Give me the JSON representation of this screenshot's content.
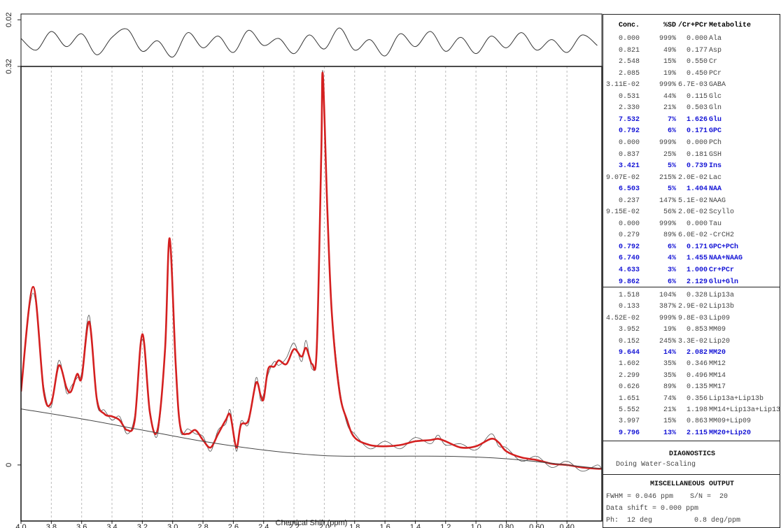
{
  "chart_data": [
    {
      "type": "line",
      "color": "#333333",
      "x": [
        4.0,
        3.9,
        3.8,
        3.7,
        3.6,
        3.5,
        3.4,
        3.3,
        3.2,
        3.1,
        3.0,
        2.9,
        2.8,
        2.7,
        2.6,
        2.5,
        2.4,
        2.3,
        2.2,
        2.1,
        2.0,
        1.9,
        1.8,
        1.7,
        1.6,
        1.5,
        1.4,
        1.3,
        1.2,
        1.1,
        1.0,
        0.9,
        0.8,
        0.7,
        0.6,
        0.5,
        0.4,
        0.3,
        0.2
      ],
      "values": [
        0.004,
        -0.006,
        0.01,
        -0.003,
        0.008,
        -0.01,
        0.005,
        0.012,
        -0.007,
        0.002,
        -0.012,
        0.009,
        -0.004,
        0.006,
        -0.008,
        0.011,
        -0.002,
        0.004,
        -0.009,
        0.007,
        -0.005,
        0.013,
        -0.006,
        0.003,
        -0.011,
        0.008,
        -0.003,
        0.01,
        -0.007,
        0.005,
        -0.009,
        0.006,
        -0.004,
        0.009,
        -0.006,
        0.003,
        -0.008,
        0.007,
        -0.002
      ],
      "xlim": [
        4.0,
        0.17
      ],
      "ylim": [
        -0.02,
        0.025
      ],
      "yticks": [
        0.02
      ]
    },
    {
      "type": "line",
      "x_label": "Chemical Shift (ppm)",
      "grid": true,
      "x": [
        4.0,
        3.92,
        3.85,
        3.8,
        3.75,
        3.7,
        3.67,
        3.63,
        3.6,
        3.55,
        3.5,
        3.45,
        3.4,
        3.35,
        3.3,
        3.25,
        3.2,
        3.15,
        3.1,
        3.05,
        3.02,
        2.98,
        2.95,
        2.9,
        2.85,
        2.8,
        2.75,
        2.7,
        2.65,
        2.62,
        2.58,
        2.55,
        2.5,
        2.45,
        2.42,
        2.4,
        2.37,
        2.33,
        2.3,
        2.25,
        2.2,
        2.15,
        2.12,
        2.08,
        2.05,
        2.02,
        2.01,
        1.98,
        1.95,
        1.9,
        1.85,
        1.8,
        1.7,
        1.6,
        1.5,
        1.4,
        1.3,
        1.25,
        1.2,
        1.1,
        1.0,
        0.9,
        0.85,
        0.8,
        0.7,
        0.6,
        0.5,
        0.4,
        0.3,
        0.2,
        0.17
      ],
      "series": [
        {
          "color": "#555555",
          "width": 0.8,
          "values": [
            0.062,
            0.138,
            0.063,
            0.047,
            0.084,
            0.058,
            0.063,
            0.07,
            0.074,
            0.12,
            0.05,
            0.044,
            0.036,
            0.039,
            0.025,
            0.04,
            0.101,
            0.045,
            0.024,
            0.09,
            0.176,
            0.085,
            0.028,
            0.029,
            0.025,
            0.023,
            0.011,
            0.028,
            0.033,
            0.044,
            0.011,
            0.035,
            0.033,
            0.07,
            0.052,
            0.057,
            0.073,
            0.083,
            0.08,
            0.086,
            0.098,
            0.083,
            0.1,
            0.077,
            0.097,
            0.245,
            0.316,
            0.2,
            0.125,
            0.063,
            0.033,
            0.025,
            0.013,
            0.019,
            0.013,
            0.022,
            0.017,
            0.024,
            0.016,
            0.017,
            0.012,
            0.025,
            0.015,
            0.014,
            0.003,
            0.007,
            -0.002,
            0.003,
            -0.005,
            0.0,
            -0.004
          ]
        },
        {
          "color": "#d42020",
          "width": 2.6,
          "values": [
            0.059,
            0.143,
            0.059,
            0.05,
            0.08,
            0.062,
            0.059,
            0.073,
            0.07,
            0.115,
            0.053,
            0.041,
            0.039,
            0.036,
            0.028,
            0.036,
            0.105,
            0.042,
            0.028,
            0.093,
            0.182,
            0.081,
            0.031,
            0.025,
            0.028,
            0.02,
            0.014,
            0.025,
            0.036,
            0.04,
            0.014,
            0.032,
            0.036,
            0.066,
            0.056,
            0.053,
            0.077,
            0.079,
            0.084,
            0.081,
            0.093,
            0.087,
            0.094,
            0.081,
            0.093,
            0.25,
            0.314,
            0.205,
            0.121,
            0.059,
            0.036,
            0.022,
            0.016,
            0.015,
            0.016,
            0.019,
            0.02,
            0.021,
            0.019,
            0.014,
            0.015,
            0.021,
            0.018,
            0.011,
            0.006,
            0.004,
            0.001,
            0,
            -0.002,
            -0.003,
            -0.003
          ]
        },
        {
          "color": "#444444",
          "width": 1,
          "x": [
            4.0,
            3.6,
            3.2,
            2.8,
            2.4,
            2.0,
            1.6,
            1.2,
            0.8,
            0.4,
            0.17
          ],
          "values": [
            0.045,
            0.037,
            0.028,
            0.019,
            0.012,
            0.0075,
            0.007,
            0.007,
            0.005,
            0.0,
            -0.003
          ]
        }
      ],
      "xlim": [
        4.0,
        0.17
      ],
      "xticks": [
        {
          "value": 4,
          "label": "4.0"
        },
        3.8,
        3.6,
        3.4,
        3.2,
        {
          "value": 3,
          "label": "3.0"
        },
        2.8,
        2.6,
        2.4,
        2.2,
        {
          "value": 2,
          "label": "2.0"
        },
        1.8,
        1.6,
        1.4,
        1.2,
        {
          "value": 1,
          "label": "1.0"
        },
        {
          "value": 0.8,
          "label": "0.80"
        },
        {
          "value": 0.6,
          "label": "0.60"
        },
        {
          "value": 0.4,
          "label": "0.40"
        }
      ],
      "ylim": [
        -0.045,
        0.32
      ],
      "yticks": [
        0,
        0.32
      ]
    }
  ],
  "table": {
    "headers": [
      "Conc.",
      "%SD",
      "/Cr+PCr",
      "Metabolite"
    ],
    "rows": [
      [
        "0.000",
        "999%",
        "0.000",
        "Ala"
      ],
      [
        "0.821",
        "49%",
        "0.177",
        "Asp"
      ],
      [
        "2.548",
        "15%",
        "0.550",
        "Cr"
      ],
      [
        "2.085",
        "19%",
        "0.450",
        "PCr"
      ],
      [
        "3.11E-02",
        "999%",
        "6.7E-03",
        "GABA"
      ],
      [
        "0.531",
        "44%",
        "0.115",
        "Glc"
      ],
      [
        "2.330",
        "21%",
        "0.503",
        "Gln"
      ],
      [
        "7.532",
        "7%",
        "1.626",
        "Glu"
      ],
      [
        "0.792",
        "6%",
        "0.171",
        "GPC"
      ],
      [
        "0.000",
        "999%",
        "0.000",
        "PCh"
      ],
      [
        "0.837",
        "25%",
        "0.181",
        "GSH"
      ],
      [
        "3.421",
        "5%",
        "0.739",
        "Ins"
      ],
      [
        "9.07E-02",
        "215%",
        "2.0E-02",
        "Lac"
      ],
      [
        "6.503",
        "5%",
        "1.404",
        "NAA"
      ],
      [
        "0.237",
        "147%",
        "5.1E-02",
        "NAAG"
      ],
      [
        "9.15E-02",
        "56%",
        "2.0E-02",
        "Scyllo"
      ],
      [
        "0.000",
        "999%",
        "0.000",
        "Tau"
      ],
      [
        "0.279",
        "89%",
        "6.0E-02",
        "-CrCH2"
      ],
      [
        "0.792",
        "6%",
        "0.171",
        "GPC+PCh"
      ],
      [
        "6.740",
        "4%",
        "1.455",
        "NAA+NAAG"
      ],
      [
        "4.633",
        "3%",
        "1.000",
        "Cr+PCr"
      ],
      [
        "9.862",
        "6%",
        "2.129",
        "Glu+Gln"
      ]
    ],
    "bold_rows": [
      7,
      8,
      11,
      13,
      18,
      19,
      20,
      21
    ],
    "lipid_rows": [
      [
        "1.518",
        "104%",
        "0.328",
        "Lip13a"
      ],
      [
        "0.133",
        "387%",
        "2.9E-02",
        "Lip13b"
      ],
      [
        "4.52E-02",
        "999%",
        "9.8E-03",
        "Lip09"
      ],
      [
        "3.952",
        "19%",
        "0.853",
        "MM09"
      ],
      [
        "0.152",
        "245%",
        "3.3E-02",
        "Lip20"
      ],
      [
        "9.644",
        "14%",
        "2.082",
        "MM20"
      ],
      [
        "1.602",
        "35%",
        "0.346",
        "MM12"
      ],
      [
        "2.299",
        "35%",
        "0.496",
        "MM14"
      ],
      [
        "0.626",
        "89%",
        "0.135",
        "MM17"
      ],
      [
        "1.651",
        "74%",
        "0.356",
        "Lip13a+Lip13b"
      ],
      [
        "5.552",
        "21%",
        "1.198",
        "MM14+Lip13a+Lip13b"
      ],
      [
        "3.997",
        "15%",
        "0.863",
        "MM09+Lip09"
      ],
      [
        "9.796",
        "13%",
        "2.115",
        "MM20+Lip20"
      ]
    ],
    "lipid_bold_rows": [
      5,
      12
    ]
  },
  "diagnostics": {
    "title": "DIAGNOSTICS",
    "text": "Doing Water-Scaling"
  },
  "misc": {
    "title": "MISCELLANEOUS OUTPUT",
    "lines": [
      "FWHM = 0.046 ppm    S/N =  20",
      "Data shift = 0.000 ppm",
      "Ph:  12 deg          0.8 deg/ppm"
    ]
  }
}
